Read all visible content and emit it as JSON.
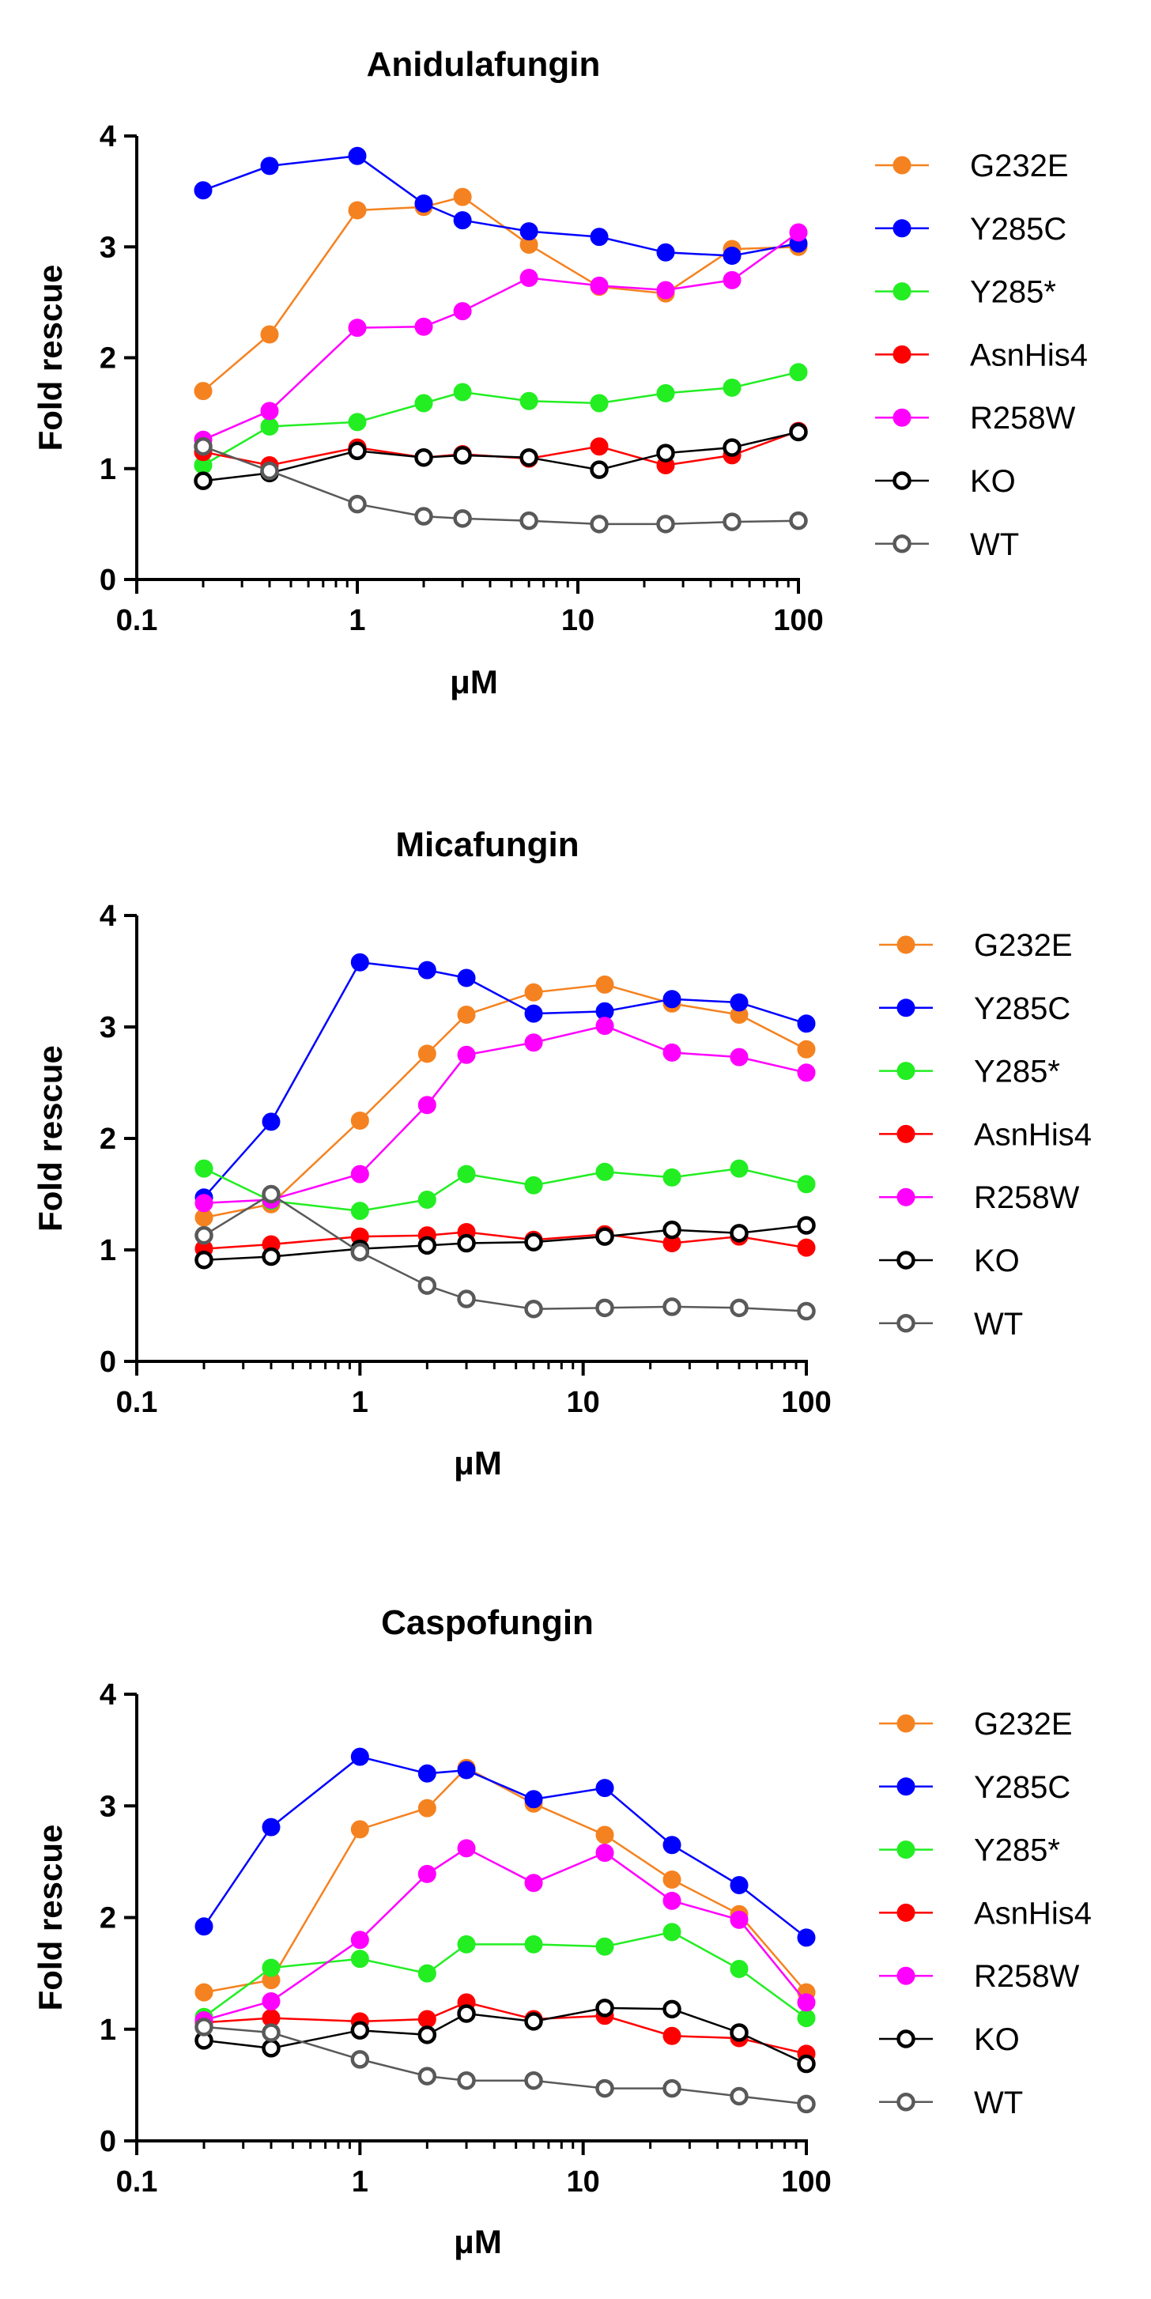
{
  "chart_data": [
    {
      "type": "line",
      "title": "Anidulafungin",
      "xlabel": "μM",
      "ylabel": "Fold rescue",
      "xscale": "log",
      "xlim": [
        0.1,
        100
      ],
      "ylim": [
        0,
        4
      ],
      "x_ticks": [
        0.1,
        1,
        10,
        100
      ],
      "x_tick_labels": [
        "0.1",
        "1",
        "10",
        "100"
      ],
      "y_ticks": [
        0,
        1,
        2,
        3,
        4
      ],
      "y_tick_labels": [
        "0",
        "1",
        "2",
        "3",
        "4"
      ],
      "x": [
        0.2,
        0.4,
        1,
        2,
        3,
        6,
        12.5,
        25,
        50,
        100
      ],
      "legend_position": "right",
      "grid": false,
      "series": [
        {
          "name": "G232E",
          "color": "#F58220",
          "marker": "filled",
          "values": [
            1.7,
            2.21,
            3.33,
            3.36,
            3.45,
            3.02,
            2.64,
            2.58,
            2.98,
            3.0
          ]
        },
        {
          "name": "Y285C",
          "color": "#0000FF",
          "marker": "filled",
          "values": [
            3.51,
            3.73,
            3.82,
            3.39,
            3.24,
            3.14,
            3.09,
            2.95,
            2.92,
            3.03
          ]
        },
        {
          "name": "Y285*",
          "color": "#22EE22",
          "marker": "filled",
          "values": [
            1.03,
            1.38,
            1.42,
            1.59,
            1.69,
            1.61,
            1.59,
            1.68,
            1.73,
            1.87
          ]
        },
        {
          "name": "AsnHis4",
          "color": "#FF0000",
          "marker": "filled",
          "values": [
            1.15,
            1.03,
            1.19,
            1.1,
            1.13,
            1.09,
            1.2,
            1.03,
            1.12,
            1.34
          ]
        },
        {
          "name": "R258W",
          "color": "#FF00FF",
          "marker": "filled",
          "values": [
            1.26,
            1.52,
            2.27,
            2.28,
            2.42,
            2.72,
            2.65,
            2.61,
            2.7,
            3.13
          ]
        },
        {
          "name": "KO",
          "color": "#000000",
          "marker": "open",
          "values": [
            0.89,
            0.96,
            1.16,
            1.1,
            1.12,
            1.1,
            0.99,
            1.14,
            1.19,
            1.33
          ]
        },
        {
          "name": "WT",
          "color": "#595959",
          "marker": "open",
          "values": [
            1.2,
            0.98,
            0.68,
            0.57,
            0.55,
            0.53,
            0.5,
            0.5,
            0.52,
            0.53
          ]
        }
      ]
    },
    {
      "type": "line",
      "title": "Micafungin",
      "xlabel": "μM",
      "ylabel": "Fold rescue",
      "xscale": "log",
      "xlim": [
        0.1,
        100
      ],
      "ylim": [
        0,
        4
      ],
      "x_ticks": [
        0.1,
        1,
        10,
        100
      ],
      "x_tick_labels": [
        "0.1",
        "1",
        "10",
        "100"
      ],
      "y_ticks": [
        0,
        1,
        2,
        3,
        4
      ],
      "y_tick_labels": [
        "0",
        "1",
        "2",
        "3",
        "4"
      ],
      "x": [
        0.2,
        0.4,
        1,
        2,
        3,
        6,
        12.5,
        25,
        50,
        100
      ],
      "legend_position": "right",
      "grid": false,
      "series": [
        {
          "name": "G232E",
          "color": "#F58220",
          "marker": "filled",
          "values": [
            1.29,
            1.41,
            2.16,
            2.76,
            3.11,
            3.31,
            3.38,
            3.21,
            3.11,
            2.8
          ]
        },
        {
          "name": "Y285C",
          "color": "#0000FF",
          "marker": "filled",
          "values": [
            1.47,
            2.15,
            3.58,
            3.51,
            3.44,
            3.12,
            3.14,
            3.25,
            3.22,
            3.03
          ]
        },
        {
          "name": "Y285*",
          "color": "#22EE22",
          "marker": "filled",
          "values": [
            1.73,
            1.44,
            1.35,
            1.45,
            1.68,
            1.58,
            1.7,
            1.65,
            1.73,
            1.59
          ]
        },
        {
          "name": "AsnHis4",
          "color": "#FF0000",
          "marker": "filled",
          "values": [
            1.01,
            1.05,
            1.12,
            1.13,
            1.16,
            1.09,
            1.14,
            1.06,
            1.12,
            1.02
          ]
        },
        {
          "name": "R258W",
          "color": "#FF00FF",
          "marker": "filled",
          "values": [
            1.42,
            1.45,
            1.68,
            2.3,
            2.75,
            2.86,
            3.01,
            2.77,
            2.73,
            2.59
          ]
        },
        {
          "name": "KO",
          "color": "#000000",
          "marker": "open",
          "values": [
            0.91,
            0.94,
            1.01,
            1.04,
            1.06,
            1.07,
            1.12,
            1.18,
            1.15,
            1.22
          ]
        },
        {
          "name": "WT",
          "color": "#595959",
          "marker": "open",
          "values": [
            1.13,
            1.5,
            0.98,
            0.68,
            0.56,
            0.47,
            0.48,
            0.49,
            0.48,
            0.45
          ]
        }
      ]
    },
    {
      "type": "line",
      "title": "Caspofungin",
      "xlabel": "μM",
      "ylabel": "Fold rescue",
      "xscale": "log",
      "xlim": [
        0.1,
        100
      ],
      "ylim": [
        0,
        4
      ],
      "x_ticks": [
        0.1,
        1,
        10,
        100
      ],
      "x_tick_labels": [
        "0.1",
        "1",
        "10",
        "100"
      ],
      "y_ticks": [
        0,
        1,
        2,
        3,
        4
      ],
      "y_tick_labels": [
        "0",
        "1",
        "2",
        "3",
        "4"
      ],
      "x": [
        0.2,
        0.4,
        1,
        2,
        3,
        6,
        12.5,
        25,
        50,
        100
      ],
      "legend_position": "right",
      "grid": false,
      "series": [
        {
          "name": "G232E",
          "color": "#F58220",
          "marker": "filled",
          "values": [
            1.33,
            1.44,
            2.79,
            2.98,
            3.34,
            3.02,
            2.74,
            2.34,
            2.03,
            1.33
          ]
        },
        {
          "name": "Y285C",
          "color": "#0000FF",
          "marker": "filled",
          "values": [
            1.92,
            2.81,
            3.44,
            3.29,
            3.32,
            3.06,
            3.16,
            2.65,
            2.29,
            1.82
          ]
        },
        {
          "name": "Y285*",
          "color": "#22EE22",
          "marker": "filled",
          "values": [
            1.11,
            1.55,
            1.63,
            1.5,
            1.76,
            1.76,
            1.74,
            1.87,
            1.54,
            1.1
          ]
        },
        {
          "name": "AsnHis4",
          "color": "#FF0000",
          "marker": "filled",
          "values": [
            1.06,
            1.1,
            1.07,
            1.09,
            1.24,
            1.09,
            1.12,
            0.94,
            0.92,
            0.78
          ]
        },
        {
          "name": "R258W",
          "color": "#FF00FF",
          "marker": "filled",
          "values": [
            1.08,
            1.25,
            1.8,
            2.39,
            2.62,
            2.31,
            2.58,
            2.15,
            1.98,
            1.24
          ]
        },
        {
          "name": "KO",
          "color": "#000000",
          "marker": "open",
          "values": [
            0.9,
            0.83,
            0.99,
            0.95,
            1.14,
            1.07,
            1.19,
            1.18,
            0.97,
            0.69
          ]
        },
        {
          "name": "WT",
          "color": "#595959",
          "marker": "open",
          "values": [
            1.02,
            0.97,
            0.73,
            0.58,
            0.54,
            0.54,
            0.47,
            0.47,
            0.4,
            0.33
          ]
        }
      ]
    }
  ]
}
